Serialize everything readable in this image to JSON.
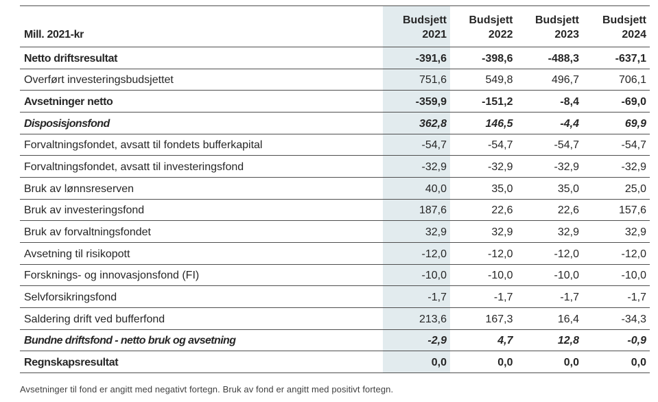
{
  "table": {
    "unit_label": "Mill. 2021-kr",
    "columns": [
      {
        "line1": "Budsjett",
        "line2": "2021"
      },
      {
        "line1": "Budsjett",
        "line2": "2022"
      },
      {
        "line1": "Budsjett",
        "line2": "2023"
      },
      {
        "line1": "Budsjett",
        "line2": "2024"
      }
    ],
    "rows": [
      {
        "label": "Netto driftsresultat",
        "style": "bold",
        "values": [
          "-391,6",
          "-398,6",
          "-488,3",
          "-637,1"
        ]
      },
      {
        "label": "Overført investeringsbudsjettet",
        "style": "normal",
        "values": [
          "751,6",
          "549,8",
          "496,7",
          "706,1"
        ]
      },
      {
        "label": "Avsetninger netto",
        "style": "bold",
        "values": [
          "-359,9",
          "-151,2",
          "-8,4",
          "-69,0"
        ]
      },
      {
        "label": "Disposisjonsfond",
        "style": "bold-italic",
        "values": [
          "362,8",
          "146,5",
          "-4,4",
          "69,9"
        ]
      },
      {
        "label": "Forvaltningsfondet, avsatt til fondets bufferkapital",
        "style": "normal",
        "values": [
          "-54,7",
          "-54,7",
          "-54,7",
          "-54,7"
        ]
      },
      {
        "label": "Forvaltningsfondet, avsatt til investeringsfond",
        "style": "normal",
        "values": [
          "-32,9",
          "-32,9",
          "-32,9",
          "-32,9"
        ]
      },
      {
        "label": "Bruk av lønnsreserven",
        "style": "normal",
        "values": [
          "40,0",
          "35,0",
          "35,0",
          "25,0"
        ]
      },
      {
        "label": "Bruk av investeringsfond",
        "style": "normal",
        "values": [
          "187,6",
          "22,6",
          "22,6",
          "157,6"
        ]
      },
      {
        "label": "Bruk av forvaltningsfondet",
        "style": "normal",
        "values": [
          "32,9",
          "32,9",
          "32,9",
          "32,9"
        ]
      },
      {
        "label": "Avsetning til risikopott",
        "style": "normal",
        "values": [
          "-12,0",
          "-12,0",
          "-12,0",
          "-12,0"
        ]
      },
      {
        "label": "Forsknings- og innovasjonsfond (FI)",
        "style": "normal",
        "values": [
          "-10,0",
          "-10,0",
          "-10,0",
          "-10,0"
        ]
      },
      {
        "label": "Selvforsikringsfond",
        "style": "normal",
        "values": [
          "-1,7",
          "-1,7",
          "-1,7",
          "-1,7"
        ]
      },
      {
        "label": "Saldering drift ved bufferfond",
        "style": "normal",
        "values": [
          "213,6",
          "167,3",
          "16,4",
          "-34,3"
        ]
      },
      {
        "label": "Bundne driftsfond - netto bruk og avsetning",
        "style": "bold-italic",
        "values": [
          "-2,9",
          "4,7",
          "12,8",
          "-0,9"
        ]
      },
      {
        "label": "Regnskapsresultat",
        "style": "bold",
        "values": [
          "0,0",
          "0,0",
          "0,0",
          "0,0"
        ]
      }
    ]
  },
  "footnote": "Avsetninger til fond er angitt med negativt fortegn. Bruk av fond er angitt med positivt fortegn.",
  "colors": {
    "accent_shade": "#e2ebee",
    "border": "#4d4d4d",
    "text": "#262626",
    "footnote_text": "#404040"
  },
  "chart_data": {
    "type": "table",
    "title": "",
    "unit": "Mill. 2021-kr",
    "columns": [
      "Budsjett 2021",
      "Budsjett 2022",
      "Budsjett 2023",
      "Budsjett 2024"
    ],
    "rows": [
      {
        "label": "Netto driftsresultat",
        "values": [
          -391.6,
          -398.6,
          -488.3,
          -637.1
        ]
      },
      {
        "label": "Overført investeringsbudsjettet",
        "values": [
          751.6,
          549.8,
          496.7,
          706.1
        ]
      },
      {
        "label": "Avsetninger netto",
        "values": [
          -359.9,
          -151.2,
          -8.4,
          -69.0
        ]
      },
      {
        "label": "Disposisjonsfond",
        "values": [
          362.8,
          146.5,
          -4.4,
          69.9
        ]
      },
      {
        "label": "Forvaltningsfondet, avsatt til fondets bufferkapital",
        "values": [
          -54.7,
          -54.7,
          -54.7,
          -54.7
        ]
      },
      {
        "label": "Forvaltningsfondet, avsatt til investeringsfond",
        "values": [
          -32.9,
          -32.9,
          -32.9,
          -32.9
        ]
      },
      {
        "label": "Bruk av lønnsreserven",
        "values": [
          40.0,
          35.0,
          35.0,
          25.0
        ]
      },
      {
        "label": "Bruk av investeringsfond",
        "values": [
          187.6,
          22.6,
          22.6,
          157.6
        ]
      },
      {
        "label": "Bruk av forvaltningsfondet",
        "values": [
          32.9,
          32.9,
          32.9,
          32.9
        ]
      },
      {
        "label": "Avsetning til risikopott",
        "values": [
          -12.0,
          -12.0,
          -12.0,
          -12.0
        ]
      },
      {
        "label": "Forsknings- og innovasjonsfond (FI)",
        "values": [
          -10.0,
          -10.0,
          -10.0,
          -10.0
        ]
      },
      {
        "label": "Selvforsikringsfond",
        "values": [
          -1.7,
          -1.7,
          -1.7,
          -1.7
        ]
      },
      {
        "label": "Saldering drift ved bufferfond",
        "values": [
          213.6,
          167.3,
          16.4,
          -34.3
        ]
      },
      {
        "label": "Bundne driftsfond - netto bruk og avsetning",
        "values": [
          -2.9,
          4.7,
          12.8,
          -0.9
        ]
      },
      {
        "label": "Regnskapsresultat",
        "values": [
          0.0,
          0.0,
          0.0,
          0.0
        ]
      }
    ]
  }
}
